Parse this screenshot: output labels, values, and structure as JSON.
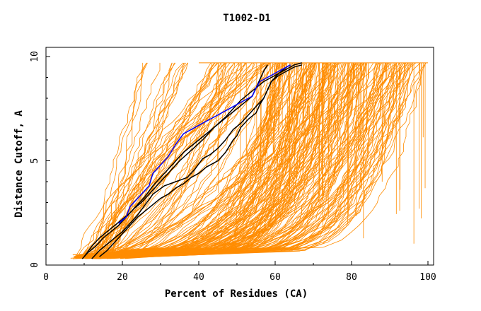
{
  "chart_data": {
    "type": "line",
    "title": "T1002-D1",
    "xlabel": "Percent of Residues (CA)",
    "ylabel": "Distance Cutoff, A",
    "xlim": [
      0,
      100
    ],
    "ylim": [
      0,
      10
    ],
    "x_ticks": [
      0,
      20,
      40,
      60,
      80,
      100
    ],
    "y_ticks": [
      0,
      5,
      10
    ],
    "x_tick_labels": [
      "0",
      "20",
      "40",
      "60",
      "80",
      "100"
    ],
    "y_tick_labels": [
      "0",
      "5",
      "10"
    ],
    "grid": false,
    "colors": {
      "background": "#ffffff",
      "other_models": "#ff8c00",
      "highlight_black": "#000000",
      "highlight_blue": "#0000ff"
    },
    "series": [
      {
        "name": "black-1",
        "color": "#000000",
        "x": [
          9.5,
          11,
          13,
          15,
          17,
          19,
          21,
          23,
          25,
          27,
          29,
          31,
          33,
          35,
          38,
          41,
          44,
          47,
          49,
          51,
          53,
          55,
          57,
          59,
          61,
          63,
          65,
          67
        ],
        "y": [
          0.3,
          0.6,
          0.9,
          1.3,
          1.6,
          1.9,
          2.3,
          2.7,
          3.0,
          3.4,
          3.8,
          4.2,
          4.6,
          5.0,
          5.5,
          6.0,
          6.6,
          7.1,
          7.5,
          7.9,
          8.2,
          8.5,
          8.8,
          9.0,
          9.2,
          9.4,
          9.6,
          9.7
        ]
      },
      {
        "name": "black-2",
        "color": "#000000",
        "x": [
          12,
          14,
          16,
          18,
          20,
          22,
          24,
          26,
          28,
          31,
          34,
          37,
          39,
          41,
          43,
          45,
          47,
          49,
          51,
          53,
          55,
          57,
          58,
          59,
          61,
          63,
          64
        ],
        "y": [
          0.3,
          0.7,
          1.0,
          1.3,
          1.6,
          2.0,
          2.4,
          2.9,
          3.4,
          3.8,
          4.0,
          4.2,
          4.6,
          5.1,
          5.3,
          5.6,
          6.0,
          6.5,
          6.8,
          7.2,
          7.6,
          8.0,
          8.4,
          8.8,
          9.2,
          9.5,
          9.6
        ]
      },
      {
        "name": "black-3",
        "color": "#000000",
        "x": [
          14,
          16,
          18,
          20,
          22,
          24,
          26,
          28,
          30,
          32,
          34,
          36,
          38,
          40,
          42,
          45,
          47,
          49,
          50,
          51,
          53,
          55,
          56,
          57,
          58,
          59,
          61,
          63,
          65,
          67
        ],
        "y": [
          0.4,
          0.7,
          1.1,
          1.5,
          1.9,
          2.3,
          2.6,
          2.9,
          3.2,
          3.4,
          3.7,
          3.9,
          4.2,
          4.4,
          4.7,
          5.0,
          5.4,
          6.0,
          6.2,
          6.6,
          7.0,
          7.3,
          7.7,
          8.0,
          8.4,
          8.8,
          9.1,
          9.3,
          9.5,
          9.6
        ]
      },
      {
        "name": "black-4",
        "color": "#000000",
        "x": [
          10,
          12,
          14,
          16,
          18,
          20,
          22,
          24,
          26,
          28,
          30,
          32,
          34,
          36,
          38,
          40,
          42,
          44,
          46,
          48,
          50,
          52,
          54,
          55,
          56,
          57,
          58
        ],
        "y": [
          0.4,
          0.9,
          1.3,
          1.6,
          1.9,
          2.2,
          2.5,
          2.9,
          3.3,
          3.8,
          4.2,
          4.6,
          5.0,
          5.4,
          5.7,
          6.0,
          6.3,
          6.6,
          6.9,
          7.2,
          7.5,
          7.8,
          8.1,
          8.5,
          8.9,
          9.3,
          9.6
        ]
      },
      {
        "name": "blue",
        "color": "#0000ff",
        "x": [
          19,
          21,
          22,
          23,
          25,
          27,
          28,
          30,
          32,
          34,
          36,
          38,
          40,
          42,
          44,
          46,
          48,
          50,
          52,
          54,
          55,
          56,
          58,
          60,
          62,
          64
        ],
        "y": [
          2.0,
          2.3,
          2.8,
          3.0,
          3.4,
          3.8,
          4.4,
          4.8,
          5.2,
          5.8,
          6.3,
          6.5,
          6.7,
          6.9,
          7.1,
          7.3,
          7.5,
          7.7,
          7.9,
          8.1,
          8.5,
          8.8,
          9.0,
          9.2,
          9.4,
          9.6
        ]
      }
    ]
  }
}
